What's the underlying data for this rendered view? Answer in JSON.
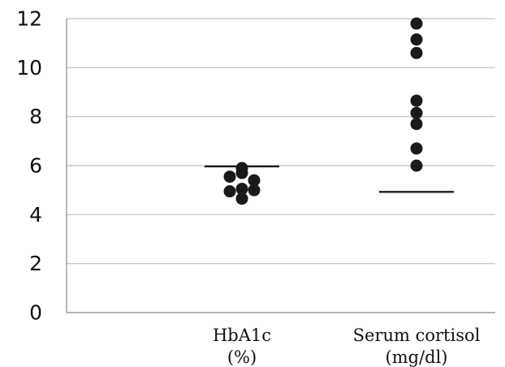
{
  "chart_data": {
    "type": "scatter",
    "title": "",
    "xlabel": "",
    "ylabel": "",
    "ylim": [
      0,
      12
    ],
    "y_ticks": [
      0,
      2,
      4,
      6,
      8,
      10,
      12
    ],
    "y_tick_labels": [
      "0",
      "2",
      "4",
      "6",
      "8",
      "10",
      "12"
    ],
    "grid": true,
    "legend": "none",
    "categories": [
      {
        "line1": "HbA1c",
        "line2": "(%)"
      },
      {
        "line1": "Serum cortisol",
        "line2": "(mg/dl)"
      }
    ],
    "series": [
      {
        "category_index": 0,
        "points": [
          {
            "offset": 0,
            "y": 5.9
          },
          {
            "offset": 0,
            "y": 5.7
          },
          {
            "offset": -1,
            "y": 5.55
          },
          {
            "offset": 1,
            "y": 5.4
          },
          {
            "offset": 0,
            "y": 5.05
          },
          {
            "offset": -1,
            "y": 4.95
          },
          {
            "offset": 1,
            "y": 5.0
          },
          {
            "offset": 0,
            "y": 4.65
          }
        ],
        "reference_line": 5.97
      },
      {
        "category_index": 1,
        "points": [
          {
            "offset": 0,
            "y": 11.8
          },
          {
            "offset": 0,
            "y": 11.15
          },
          {
            "offset": 0,
            "y": 10.6
          },
          {
            "offset": 0,
            "y": 8.65
          },
          {
            "offset": 0,
            "y": 8.15
          },
          {
            "offset": 0,
            "y": 7.7
          },
          {
            "offset": 0,
            "y": 6.7
          },
          {
            "offset": 0,
            "y": 6.0
          }
        ],
        "reference_line": 4.93
      }
    ],
    "colors": {
      "point": "#1a1a1a",
      "reference_line": "#1a1a1a",
      "grid": "#bfbfbf",
      "axis": "#888888"
    }
  }
}
